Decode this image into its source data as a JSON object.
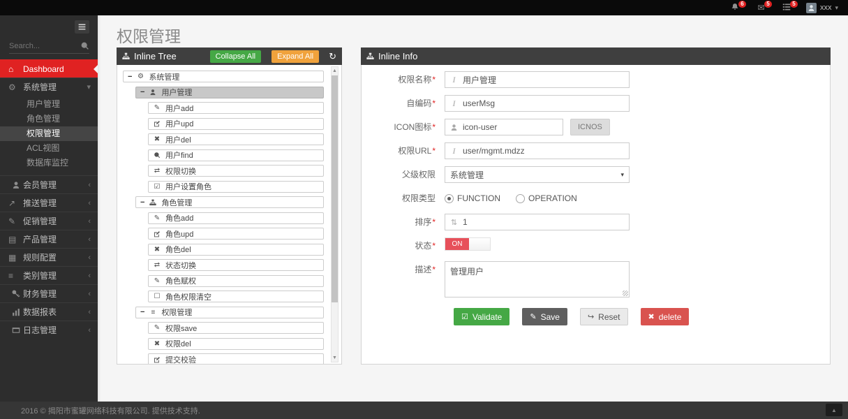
{
  "topbar": {
    "notifications": [
      {
        "icon": "bell-icon",
        "count": "6"
      },
      {
        "icon": "envelope-icon",
        "count": "5"
      },
      {
        "icon": "tasks-icon",
        "count": "5"
      }
    ],
    "user": {
      "name": "xxx",
      "icon": "avatar-icon",
      "caret_icon": "chevron-down-icon"
    }
  },
  "sidebar": {
    "search_placeholder": "Search...",
    "toggle_icon": "hamburger-icon",
    "search_icon": "search-icon",
    "items": [
      {
        "icon": "home-icon",
        "label": "Dashboard",
        "active": true,
        "children": []
      },
      {
        "icon": "gears-icon",
        "label": "系统管理",
        "expanded": true,
        "children": [
          {
            "label": "用户管理",
            "active": false
          },
          {
            "label": "角色管理",
            "active": false
          },
          {
            "label": "权限管理",
            "active": true
          },
          {
            "label": "ACL视图",
            "active": false
          },
          {
            "label": "数据库监控",
            "active": false
          }
        ]
      },
      {
        "icon": "member-icon",
        "label": "会员管理",
        "children": null
      },
      {
        "icon": "share-icon",
        "label": "推送管理",
        "children": null
      },
      {
        "icon": "pencil-icon",
        "label": "促销管理",
        "children": null
      },
      {
        "icon": "book-icon",
        "label": "产品管理",
        "children": null
      },
      {
        "icon": "table-icon",
        "label": "规则配置",
        "children": null
      },
      {
        "icon": "list-icon",
        "label": "类别管理",
        "children": null
      },
      {
        "icon": "key-icon",
        "label": "财务管理",
        "children": null
      },
      {
        "icon": "chart-icon",
        "label": "数据报表",
        "children": null
      },
      {
        "icon": "log-icon",
        "label": "日志管理",
        "children": null
      }
    ]
  },
  "page": {
    "title": "权限管理"
  },
  "tree_panel": {
    "title": "Inline Tree",
    "icon": "sitemap-icon",
    "collapse_all_label": "Collapse All",
    "expand_all_label": "Expand All",
    "refresh_icon": "refresh-icon",
    "nodes": [
      {
        "level": 0,
        "toggle": "−",
        "icon": "gears-icon",
        "label": "系统管理",
        "selected": false
      },
      {
        "level": 1,
        "toggle": "−",
        "icon": "member-icon",
        "label": "用户管理",
        "selected": true
      },
      {
        "level": 2,
        "toggle": "",
        "icon": "pencil-icon",
        "label": "用户add",
        "selected": false
      },
      {
        "level": 2,
        "toggle": "",
        "icon": "edit-icon",
        "label": "用户upd",
        "selected": false
      },
      {
        "level": 2,
        "toggle": "",
        "icon": "times-icon",
        "label": "用户del",
        "selected": false
      },
      {
        "level": 2,
        "toggle": "",
        "icon": "search-icon",
        "label": "用户find",
        "selected": false
      },
      {
        "level": 2,
        "toggle": "",
        "icon": "retweet-icon",
        "label": "权限切换",
        "selected": false
      },
      {
        "level": 2,
        "toggle": "",
        "icon": "check-square-icon",
        "label": "用户设置角色",
        "selected": false
      },
      {
        "level": 1,
        "toggle": "−",
        "icon": "sitemap-icon",
        "label": "角色管理",
        "selected": false
      },
      {
        "level": 2,
        "toggle": "",
        "icon": "pencil-icon",
        "label": "角色add",
        "selected": false
      },
      {
        "level": 2,
        "toggle": "",
        "icon": "edit-icon",
        "label": "角色upd",
        "selected": false
      },
      {
        "level": 2,
        "toggle": "",
        "icon": "times-icon",
        "label": "角色del",
        "selected": false
      },
      {
        "level": 2,
        "toggle": "",
        "icon": "retweet-icon",
        "label": "状态切换",
        "selected": false
      },
      {
        "level": 2,
        "toggle": "",
        "icon": "pencil-icon",
        "label": "角色赋权",
        "selected": false
      },
      {
        "level": 2,
        "toggle": "",
        "icon": "square-icon",
        "label": "角色权限清空",
        "selected": false
      },
      {
        "level": 1,
        "toggle": "−",
        "icon": "list-icon",
        "label": "权限管理",
        "selected": false
      },
      {
        "level": 2,
        "toggle": "",
        "icon": "pencil-icon",
        "label": "权限save",
        "selected": false
      },
      {
        "level": 2,
        "toggle": "",
        "icon": "times-icon",
        "label": "权限del",
        "selected": false
      },
      {
        "level": 2,
        "toggle": "",
        "icon": "edit-icon",
        "label": "提交校验",
        "selected": false
      }
    ]
  },
  "info_panel": {
    "title": "Inline Info",
    "icon": "sitemap-icon",
    "fields": [
      {
        "key": "name",
        "label": "权限名称",
        "required": "*",
        "control": "input",
        "icon": "italic-icon",
        "value": "用户管理"
      },
      {
        "key": "code",
        "label": "自编码",
        "required": "*",
        "control": "input",
        "icon": "italic-icon",
        "value": "userMsg"
      },
      {
        "key": "icon",
        "label": "ICON图标",
        "required": "*",
        "control": "input-button",
        "icon": "member-icon",
        "value": "icon-user",
        "button_label": "ICNOS"
      },
      {
        "key": "url",
        "label": "权限URL",
        "required": "*",
        "control": "input",
        "icon": "italic-icon",
        "value": "user/mgmt.mdzz"
      },
      {
        "key": "parent",
        "label": "父级权限",
        "required": "",
        "control": "select",
        "value": "系统管理",
        "caret_icon": "caret-down-icon"
      },
      {
        "key": "type",
        "label": "权限类型",
        "required": "",
        "control": "radio",
        "options": [
          {
            "label": "FUNCTION",
            "checked": true
          },
          {
            "label": "OPERATION",
            "checked": false
          }
        ]
      },
      {
        "key": "sort",
        "label": "排序",
        "required": "*",
        "control": "input",
        "icon": "sort-icon",
        "value": "1"
      },
      {
        "key": "status",
        "label": "状态",
        "required": "*",
        "control": "toggle",
        "value": "ON"
      },
      {
        "key": "desc",
        "label": "描述",
        "required": "*",
        "control": "textarea",
        "value": "管理用户"
      }
    ],
    "buttons": [
      {
        "key": "validate",
        "icon": "check-square-icon",
        "label": "Validate",
        "style": "success"
      },
      {
        "key": "save",
        "icon": "pencil-icon",
        "label": "Save",
        "style": "dark"
      },
      {
        "key": "reset",
        "icon": "reply-icon",
        "label": "Reset",
        "style": "default"
      },
      {
        "key": "delete",
        "icon": "times-icon",
        "label": "delete",
        "style": "danger"
      }
    ]
  },
  "footer": {
    "text": "2016 © 揭阳市蜜罐网络科技有限公司. 提供技术支持.",
    "scroll_top_icon": "arrow-up-icon"
  },
  "colors": {
    "accent_red": "#e02222",
    "header_dark": "#3f3f3f",
    "green": "#45a845",
    "orange": "#f0a23c",
    "danger": "#d9534f",
    "dark_button": "#5f5f5f",
    "toggle_on": "#e7505a"
  }
}
